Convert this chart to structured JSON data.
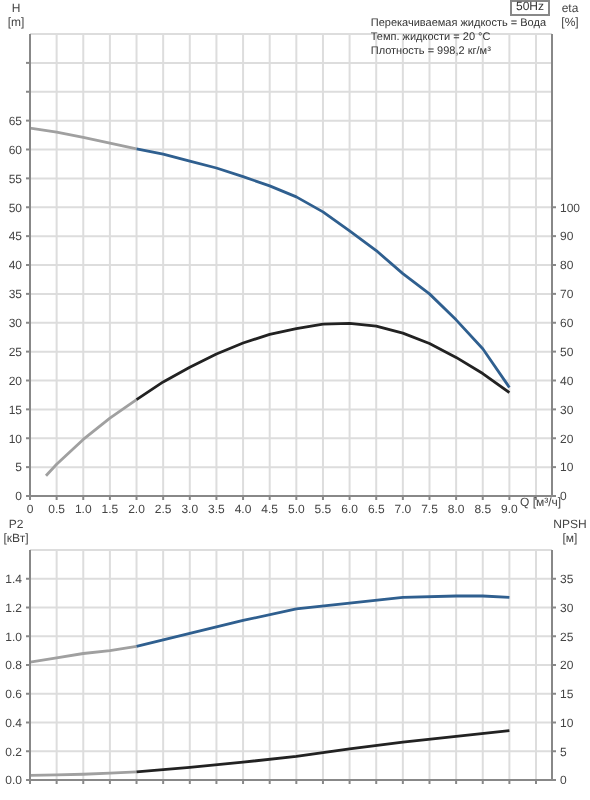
{
  "chart_data": [
    {
      "type": "line",
      "title": "50Hz",
      "ylabel": "H [m]",
      "y2label": "eta [%]",
      "xlabel": "Q [м³/ч]",
      "annotations": [
        "Перекачиваемая жидкость = Вода",
        "Темп. жидкости = 20 °C",
        "Плотность = 998,2 кг/м³"
      ],
      "xlim": [
        0,
        9.8
      ],
      "xticks": [
        0,
        {
          "value": 0.5,
          "label": "0.5"
        },
        {
          "value": 1,
          "label": "1.0"
        },
        {
          "value": 1.5,
          "label": "1.5"
        },
        {
          "value": 2,
          "label": "2.0"
        },
        {
          "value": 2.5,
          "label": "2.5"
        },
        {
          "value": 3,
          "label": "3.0"
        },
        {
          "value": 3.5,
          "label": "3.5"
        },
        {
          "value": 4,
          "label": "4.0"
        },
        {
          "value": 4.5,
          "label": "4.5"
        },
        {
          "value": 5,
          "label": "5.0"
        },
        {
          "value": 5.5,
          "label": "5.5"
        },
        {
          "value": 6,
          "label": "6.0"
        },
        {
          "value": 6.5,
          "label": "6.5"
        },
        {
          "value": 7,
          "label": "7.0"
        },
        {
          "value": 7.5,
          "label": "7.5"
        },
        {
          "value": 8,
          "label": "8.0"
        },
        {
          "value": 8.5,
          "label": "8.5"
        },
        {
          "value": 9,
          "label": "9.0"
        },
        {
          "value": 9.5,
          "label": null
        }
      ],
      "ylim": [
        0,
        80
      ],
      "yticks": [
        0,
        5,
        10,
        15,
        20,
        25,
        30,
        35,
        40,
        45,
        50,
        55,
        60,
        65,
        {
          "value": 70,
          "label": null
        },
        {
          "value": 75,
          "label": null
        }
      ],
      "y2lim": [
        0,
        160
      ],
      "y2ticks": [
        0,
        10,
        20,
        30,
        40,
        50,
        60,
        70,
        80,
        90,
        100
      ],
      "grid": true,
      "legend": false,
      "marker": "none",
      "series": [
        {
          "color": "#a0a0a0",
          "x": [
            0,
            0.5,
            1,
            1.5,
            2
          ],
          "values": [
            63.7,
            63.0,
            62.1,
            61.1,
            60.1
          ]
        },
        {
          "color": "#2f5f8f",
          "x": [
            2,
            2.5,
            3,
            3.5,
            4,
            4.5,
            5,
            5.5,
            6,
            6.5,
            7,
            7.5,
            8,
            8.5,
            9
          ],
          "values": [
            60.1,
            59.2,
            58.0,
            56.8,
            55.3,
            53.7,
            51.8,
            49.2,
            45.9,
            42.5,
            38.5,
            35.0,
            30.5,
            25.5,
            18.8
          ]
        },
        {
          "color": "#a0a0a0",
          "axis": "y2",
          "x": [
            0.3,
            0.5,
            1,
            1.5,
            2
          ],
          "values": [
            7,
            11,
            19.6,
            27,
            33.4
          ]
        },
        {
          "color": "#222222",
          "axis": "y2",
          "x": [
            2,
            2.5,
            3,
            3.5,
            4,
            4.5,
            5,
            5.5,
            6,
            6.5,
            7,
            7.5,
            8,
            8.5,
            9
          ],
          "values": [
            33.4,
            39.5,
            44.6,
            49.2,
            53,
            56,
            58,
            59.5,
            59.8,
            58.8,
            56.4,
            52.8,
            48,
            42.4,
            35.8
          ]
        }
      ]
    },
    {
      "type": "line",
      "ylabel": "P2 [кВт]",
      "y2label": "NPSH [м]",
      "tick_labels": "y",
      "xlim": [
        0,
        9.8
      ],
      "xticks": [
        0,
        0.5,
        1,
        1.5,
        2,
        2.5,
        3,
        3.5,
        4,
        4.5,
        5,
        5.5,
        6,
        6.5,
        7,
        7.5,
        8,
        8.5,
        9,
        9.5
      ],
      "ylim": [
        0,
        1.6
      ],
      "yticks": [
        {
          "value": 0,
          "label": "0.0"
        },
        0.2,
        0.4,
        0.6,
        0.8,
        {
          "value": 1,
          "label": "1.0"
        },
        1.2,
        1.4
      ],
      "y2lim": [
        0,
        40
      ],
      "y2ticks": [
        0,
        5,
        10,
        15,
        20,
        25,
        30,
        35
      ],
      "grid": true,
      "legend": false,
      "marker": "none",
      "series": [
        {
          "color": "#a0a0a0",
          "x": [
            0,
            0.5,
            1,
            1.5,
            2
          ],
          "values": [
            0.82,
            0.85,
            0.88,
            0.9,
            0.93
          ]
        },
        {
          "color": "#2f5f8f",
          "x": [
            2,
            3,
            4,
            5,
            6,
            7,
            8,
            8.5,
            9
          ],
          "values": [
            0.93,
            1.02,
            1.11,
            1.19,
            1.23,
            1.27,
            1.28,
            1.28,
            1.27
          ]
        },
        {
          "color": "#a0a0a0",
          "axis": "y2",
          "x": [
            0,
            0.5,
            1,
            1.5,
            2
          ],
          "values": [
            0.8,
            0.9,
            1.0,
            1.2,
            1.4
          ]
        },
        {
          "color": "#222222",
          "axis": "y2",
          "x": [
            2,
            3,
            4,
            5,
            6,
            7,
            8,
            9
          ],
          "values": [
            1.4,
            2.2,
            3.1,
            4.1,
            5.4,
            6.6,
            7.6,
            8.6
          ]
        }
      ]
    }
  ]
}
